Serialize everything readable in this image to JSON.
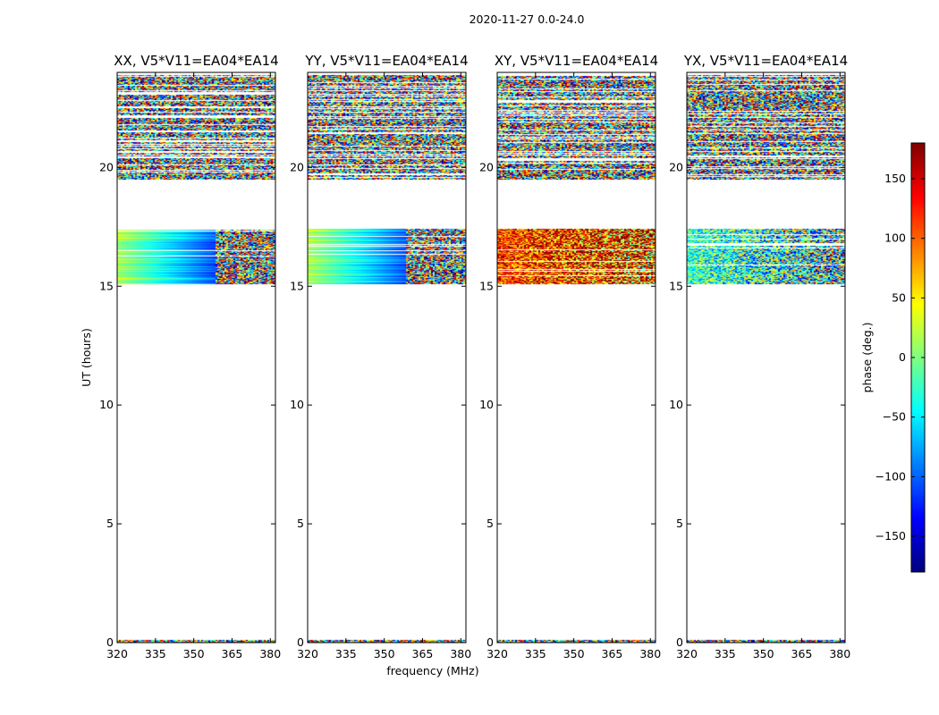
{
  "chart_data": {
    "type": "heatmap",
    "title": "2020-11-27 0.0-24.0",
    "xlabel": "frequency (MHz)",
    "ylabel": "UT (hours)",
    "xlim": [
      320,
      382
    ],
    "ylim": [
      0,
      24
    ],
    "xticks": [
      "320",
      "335",
      "350",
      "365",
      "380"
    ],
    "xtick_values": [
      320,
      335,
      350,
      365,
      380
    ],
    "yticks": [
      "0",
      "5",
      "10",
      "15",
      "20"
    ],
    "ytick_values": [
      0,
      5,
      10,
      15,
      20
    ],
    "panels": [
      {
        "title": "XX, V5*V11=EA04*EA14",
        "mode": "smooth"
      },
      {
        "title": "YY, V5*V11=EA04*EA14",
        "mode": "smooth"
      },
      {
        "title": "XY, V5*V11=EA04*EA14",
        "mode": "noisy"
      },
      {
        "title": "YX, V5*V11=EA04*EA14",
        "mode": "noisy"
      }
    ],
    "data_time_ranges_hours": [
      [
        0.0,
        0.1
      ],
      [
        15.1,
        17.4
      ],
      [
        19.5,
        23.9
      ]
    ],
    "colorbar": {
      "label": "phase (deg.)",
      "range": [
        -180,
        180
      ],
      "ticks": [
        "150",
        "100",
        "50",
        "0",
        "−50",
        "−100",
        "−150"
      ],
      "tick_values": [
        150,
        100,
        50,
        0,
        -50,
        -100,
        -150
      ],
      "colormap": "jet"
    }
  }
}
